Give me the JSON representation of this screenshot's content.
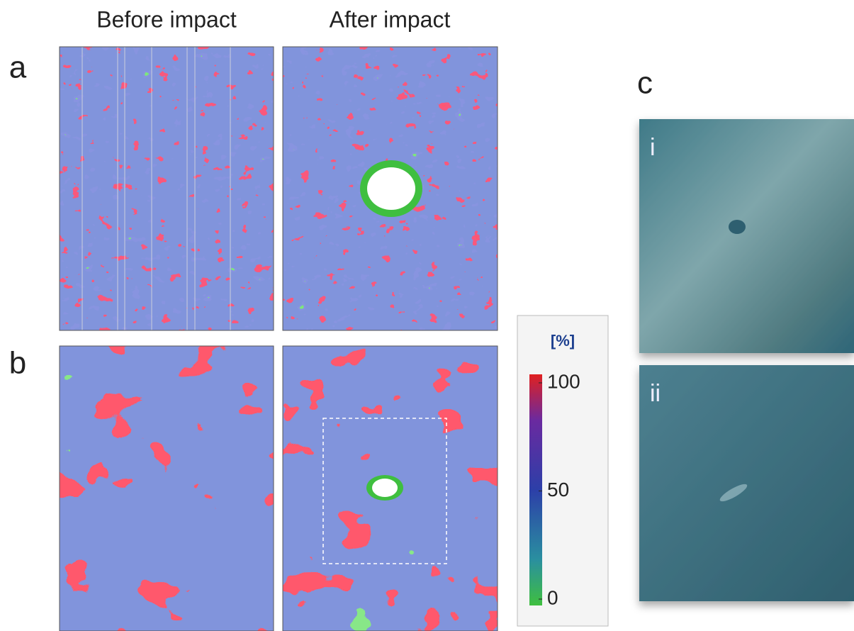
{
  "header": {
    "before": "Before impact",
    "after": "After impact"
  },
  "panels": {
    "a": "a",
    "b": "b",
    "c": "c",
    "c_i": "i",
    "c_ii": "ii"
  },
  "colorbar": {
    "unit": "[%]",
    "ticks": [
      100,
      50,
      0
    ]
  }
}
